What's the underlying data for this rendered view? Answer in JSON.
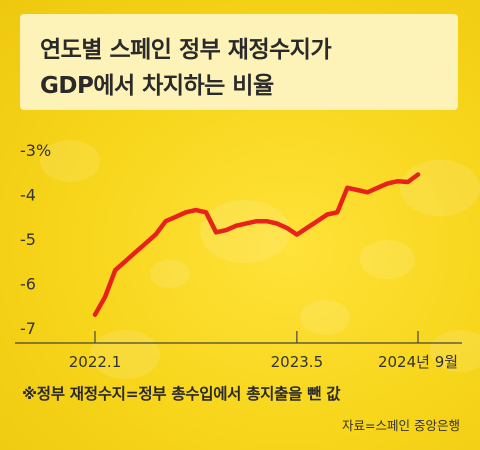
{
  "title": {
    "line1": "연도별 스페인 정부 재정수지가",
    "line2": "GDP에서 차지하는 비율"
  },
  "chart_data": {
    "type": "line",
    "title": "연도별 스페인 정부 재정수지가 GDP에서 차지하는 비율",
    "xlabel": "",
    "ylabel": "",
    "ylim": [
      -7,
      -3
    ],
    "yticks": [
      -3,
      -4,
      -5,
      -6,
      -7
    ],
    "ytick_labels": [
      "-3%",
      "-4",
      "-5",
      "-6",
      "-7"
    ],
    "xticks": [
      0,
      20,
      32
    ],
    "xtick_labels": [
      "2022.1",
      "2023.5",
      "2024년 9월"
    ],
    "series_color": "#e8211b",
    "grid": false,
    "x": [
      0,
      1,
      2,
      3,
      4,
      5,
      6,
      7,
      8,
      9,
      10,
      11,
      12,
      13,
      14,
      15,
      16,
      17,
      18,
      19,
      20,
      21,
      22,
      23,
      24,
      25,
      26,
      27,
      28,
      29,
      30,
      31,
      32
    ],
    "values": [
      -6.7,
      -6.3,
      -5.7,
      -5.5,
      -5.3,
      -5.1,
      -4.9,
      -4.6,
      -4.5,
      -4.4,
      -4.35,
      -4.4,
      -4.85,
      -4.8,
      -4.7,
      -4.65,
      -4.6,
      -4.6,
      -4.65,
      -4.75,
      -4.9,
      -4.75,
      -4.6,
      -4.45,
      -4.4,
      -3.85,
      -3.9,
      -3.95,
      -3.85,
      -3.75,
      -3.7,
      -3.72,
      -3.55
    ]
  },
  "footnote": "※정부 재정수지=정부 총수입에서 총지출을 뺀 값",
  "source": "자료=스페인 중앙은행"
}
